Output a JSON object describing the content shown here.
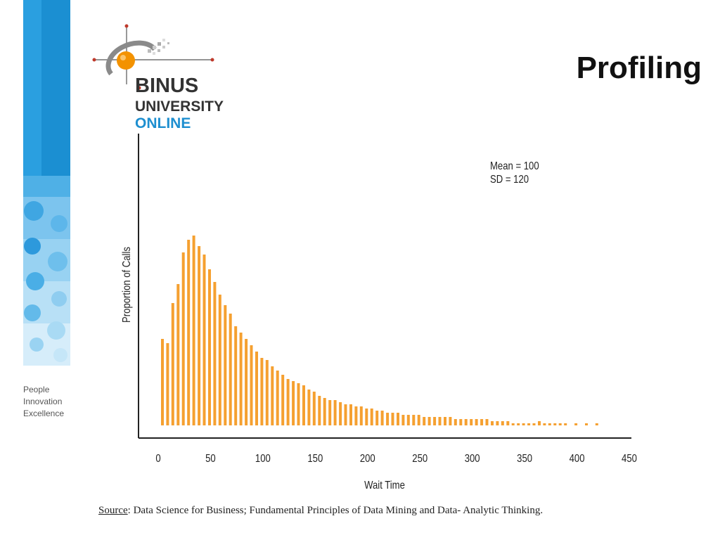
{
  "slide": {
    "title": "Profiling",
    "source_label": "Source",
    "source_text": ": Data Science for Business; Fundamental Principles of Data Mining and Data- Analytic Thinking."
  },
  "logo": {
    "line1": "BINUS",
    "line2": "UNIVERSITY",
    "line3": "ONLINE"
  },
  "tagline": [
    "People",
    "Innovation",
    "Excellence"
  ],
  "colors": {
    "bar": "#f5a030",
    "brand_blue": "#1e8fd0",
    "brand_orange": "#f39200"
  },
  "chart_data": {
    "type": "bar",
    "xlabel": "Wait Time",
    "ylabel": "Proportion of Calls",
    "xlim": [
      0,
      450
    ],
    "ylim": [
      0,
      1
    ],
    "xticks": [
      0,
      50,
      100,
      150,
      200,
      250,
      300,
      350,
      400,
      450
    ],
    "annotations": [
      "Mean = 100",
      "SD = 120"
    ],
    "grid": false,
    "x": [
      4,
      9,
      14,
      19,
      24,
      29,
      34,
      39,
      44,
      49,
      54,
      59,
      64,
      69,
      74,
      79,
      84,
      89,
      94,
      99,
      104,
      109,
      114,
      119,
      124,
      129,
      134,
      139,
      144,
      149,
      154,
      159,
      164,
      169,
      174,
      179,
      184,
      189,
      194,
      199,
      204,
      209,
      214,
      219,
      224,
      229,
      234,
      239,
      244,
      249,
      254,
      259,
      264,
      269,
      274,
      279,
      284,
      289,
      294,
      299,
      304,
      309,
      314,
      319,
      324,
      329,
      334,
      339,
      344,
      349,
      354,
      359,
      364,
      369,
      374,
      379,
      384,
      389,
      399,
      409,
      419
    ],
    "values": [
      0.41,
      0.39,
      0.58,
      0.67,
      0.82,
      0.88,
      0.9,
      0.85,
      0.81,
      0.74,
      0.68,
      0.62,
      0.57,
      0.53,
      0.47,
      0.44,
      0.41,
      0.38,
      0.35,
      0.32,
      0.31,
      0.28,
      0.26,
      0.24,
      0.22,
      0.21,
      0.2,
      0.19,
      0.17,
      0.16,
      0.14,
      0.13,
      0.12,
      0.12,
      0.11,
      0.1,
      0.1,
      0.09,
      0.09,
      0.08,
      0.08,
      0.07,
      0.07,
      0.06,
      0.06,
      0.06,
      0.05,
      0.05,
      0.05,
      0.05,
      0.04,
      0.04,
      0.04,
      0.04,
      0.04,
      0.04,
      0.03,
      0.03,
      0.03,
      0.03,
      0.03,
      0.03,
      0.03,
      0.02,
      0.02,
      0.02,
      0.02,
      0.01,
      0.01,
      0.01,
      0.01,
      0.01,
      0.02,
      0.01,
      0.01,
      0.01,
      0.01,
      0.01,
      0.01,
      0.01,
      0.01
    ]
  }
}
